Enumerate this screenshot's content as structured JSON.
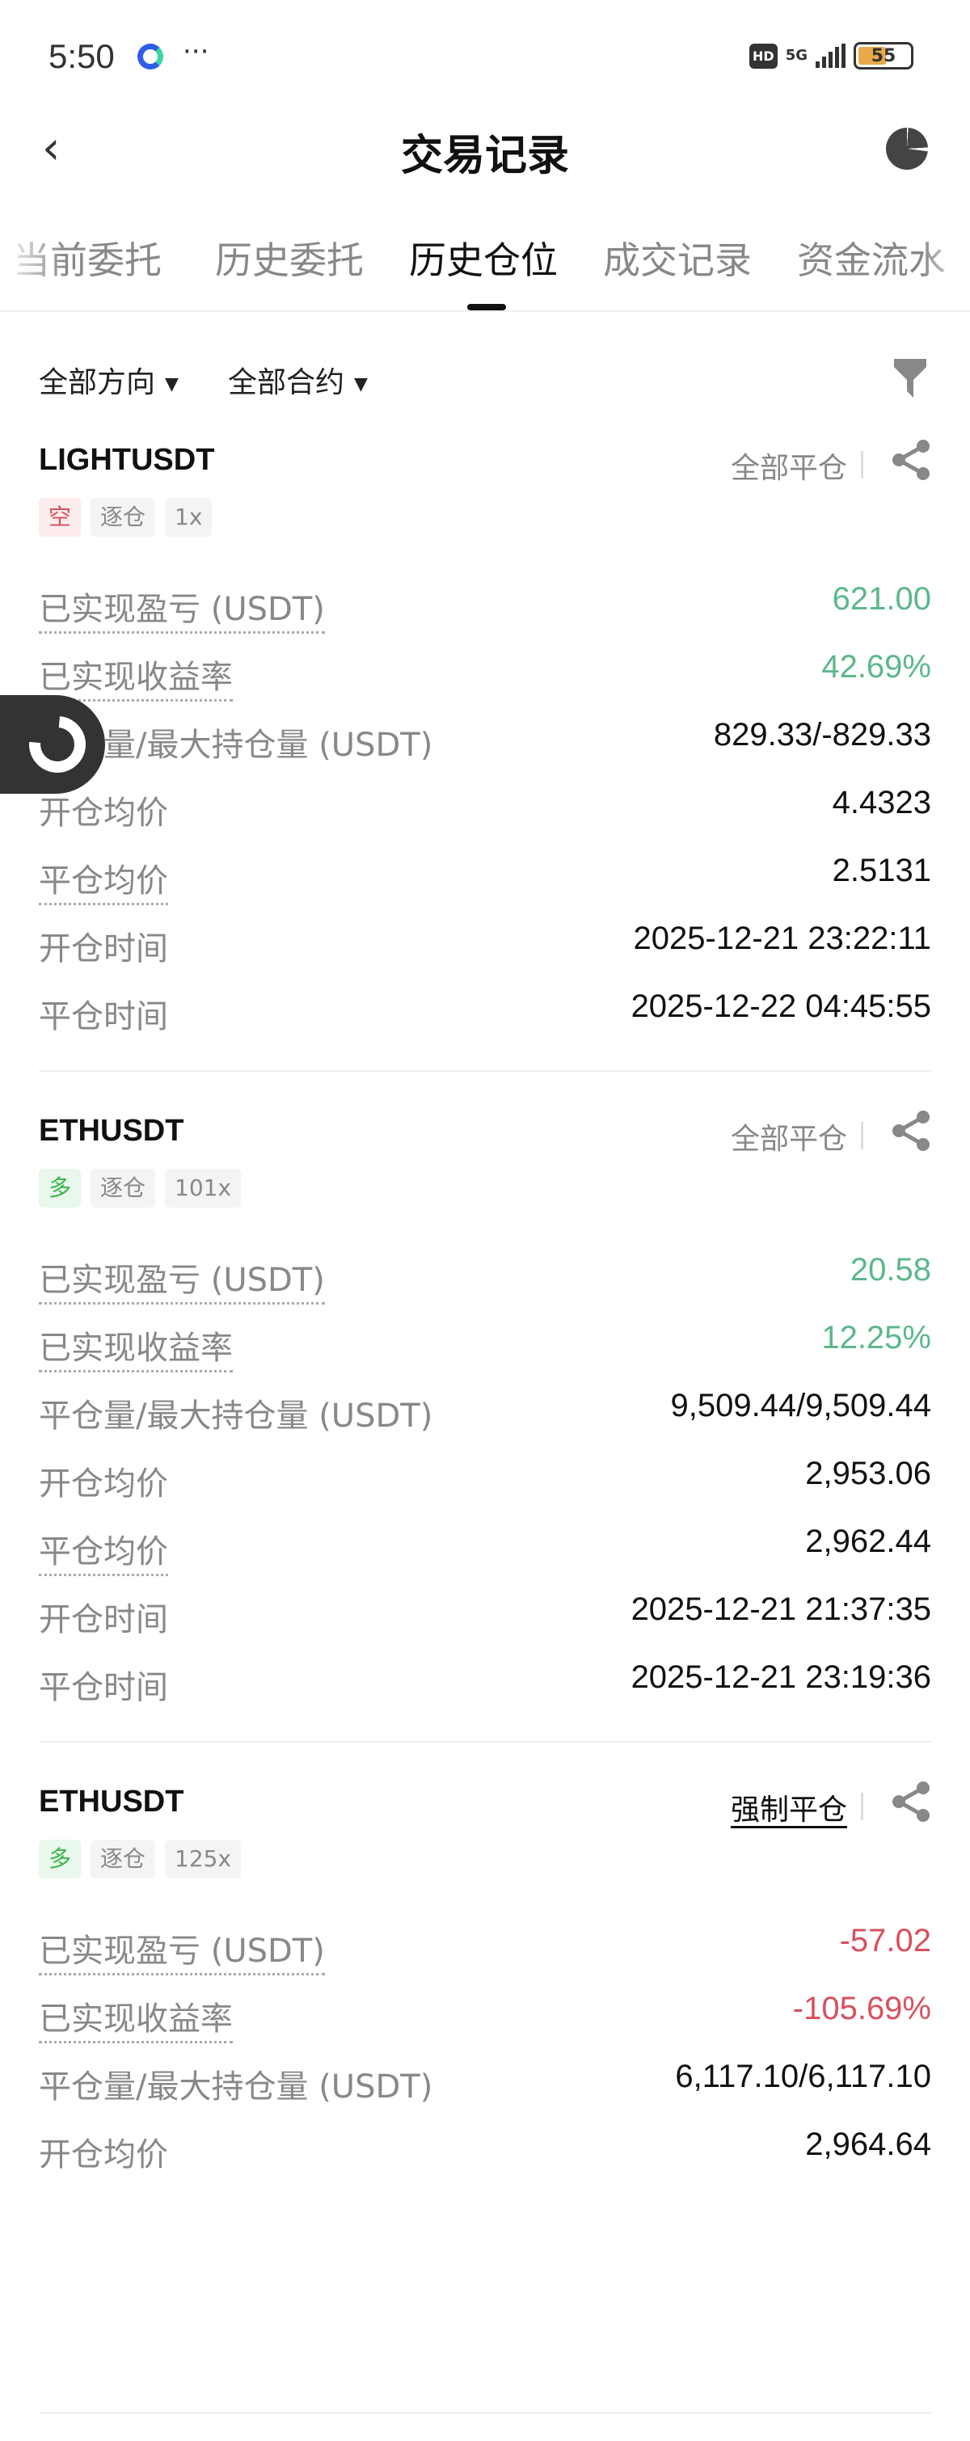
{
  "status_bar": {
    "time": "5:50",
    "more": "···",
    "hd": "HD",
    "network": "5G",
    "battery": "55",
    "battery_level": 55
  },
  "header": {
    "title": "交易记录",
    "back_icon": "chevron-left-icon",
    "right_icon": "pie-chart-icon"
  },
  "tabs": [
    {
      "label": "当前委托"
    },
    {
      "label": "历史委托"
    },
    {
      "label": "历史仓位",
      "active": true
    },
    {
      "label": "成交记录"
    },
    {
      "label": "资金流水"
    }
  ],
  "filters": {
    "direction": "全部方向",
    "contract": "全部合约",
    "filter_icon": "funnel-icon"
  },
  "colors": {
    "profit": "#5bb88a",
    "loss": "#d9505d"
  },
  "labels": {
    "pnl": "已实现盈亏 (USDT)",
    "roi": "已实现收益率",
    "volume": "平仓量/最大持仓量 (USDT)",
    "open_price": "开仓均价",
    "close_price": "平仓均价",
    "open_time": "开仓时间",
    "close_time": "平仓时间"
  },
  "positions": [
    {
      "symbol": "LIGHTUSDT",
      "close_type": "全部平仓",
      "side": "空",
      "margin": "逐仓",
      "leverage": "1x",
      "pnl": "621.00",
      "roi": "42.69%",
      "volume": "829.33/-829.33",
      "open_price": "4.4323",
      "close_price": "2.5131",
      "open_time": "2025-12-21 23:22:11",
      "close_time": "2025-12-22 04:45:55",
      "tone": "pos",
      "side_tone": "short"
    },
    {
      "symbol": "ETHUSDT",
      "close_type": "全部平仓",
      "side": "多",
      "margin": "逐仓",
      "leverage": "101x",
      "pnl": "20.58",
      "roi": "12.25%",
      "volume": "9,509.44/9,509.44",
      "open_price": "2,953.06",
      "close_price": "2,962.44",
      "open_time": "2025-12-21 21:37:35",
      "close_time": "2025-12-21 23:19:36",
      "tone": "pos",
      "side_tone": "long"
    },
    {
      "symbol": "ETHUSDT",
      "close_type": "强制平仓",
      "side": "多",
      "margin": "逐仓",
      "leverage": "125x",
      "pnl": "-57.02",
      "roi": "-105.69%",
      "volume": "6,117.10/6,117.10",
      "open_price": "2,964.64",
      "tone": "neg",
      "side_tone": "long",
      "forced": true
    }
  ]
}
